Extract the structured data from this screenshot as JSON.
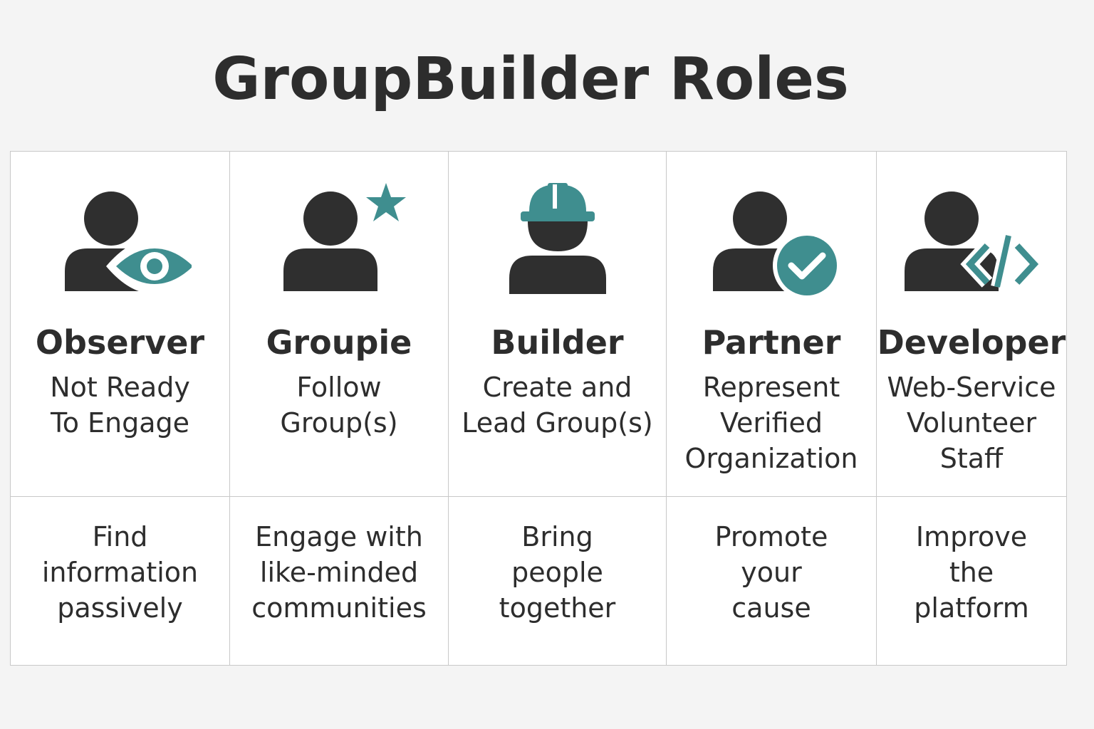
{
  "title": "GroupBuilder Roles",
  "colors": {
    "accent": "#3f8e8f",
    "dark": "#2f2f2f",
    "background": "#f4f4f4",
    "card": "#ffffff",
    "border": "#c8c8c8"
  },
  "roles": [
    {
      "icon": "person-eye-icon",
      "name": "Observer",
      "subtitle": [
        "Not Ready",
        "To Engage"
      ],
      "description": [
        "Find",
        "information",
        "passively"
      ]
    },
    {
      "icon": "person-star-icon",
      "name": "Groupie",
      "subtitle": [
        "Follow",
        "Group(s)"
      ],
      "description": [
        "Engage with",
        "like-minded",
        "communities"
      ]
    },
    {
      "icon": "person-hardhat-icon",
      "name": "Builder",
      "subtitle": [
        "Create and",
        "Lead Group(s)"
      ],
      "description": [
        "Bring",
        "people",
        "together"
      ]
    },
    {
      "icon": "person-check-icon",
      "name": "Partner",
      "subtitle": [
        "Represent",
        "Verified",
        "Organization"
      ],
      "description": [
        "Promote",
        "your",
        "cause"
      ]
    },
    {
      "icon": "person-code-icon",
      "name": "Developer",
      "subtitle": [
        "Web-Service",
        "Volunteer",
        "Staff"
      ],
      "description": [
        "Improve",
        "the",
        "platform"
      ]
    }
  ]
}
